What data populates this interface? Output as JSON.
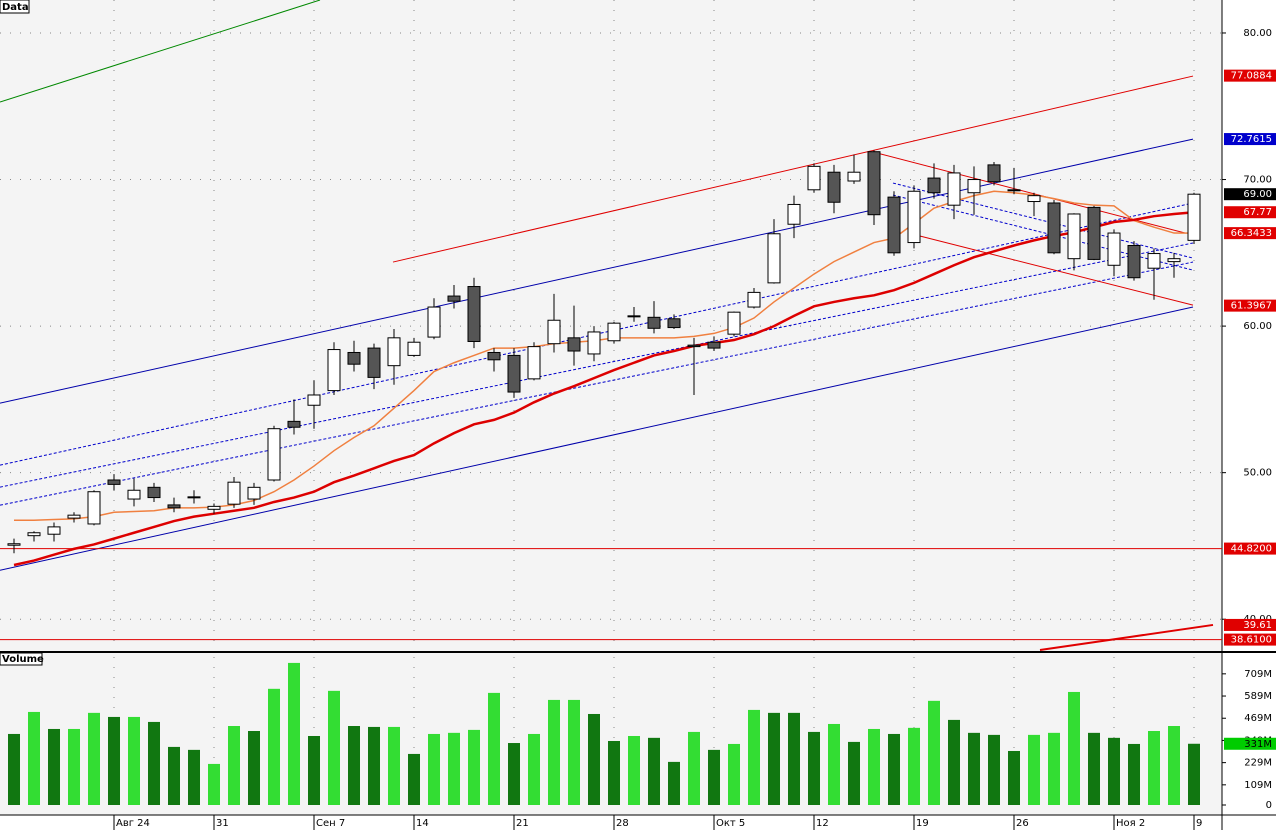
{
  "chart_data": {
    "type": "candlestick",
    "panel_label": "Data",
    "categories": [
      null,
      null,
      null,
      null,
      null,
      "Авг 24",
      null,
      null,
      null,
      null,
      "31",
      null,
      null,
      null,
      null,
      "Сен 7",
      null,
      null,
      null,
      null,
      "14",
      null,
      null,
      null,
      null,
      "21",
      null,
      null,
      null,
      null,
      "28",
      null,
      null,
      null,
      null,
      "Окт 5",
      null,
      null,
      null,
      null,
      "12",
      null,
      null,
      null,
      null,
      "19",
      null,
      null,
      null,
      null,
      "26",
      null,
      null,
      null,
      null,
      "Ноя 2",
      null,
      null,
      null,
      "9"
    ],
    "open": [
      45.05,
      45.7,
      45.8,
      46.9,
      46.5,
      49.5,
      48.2,
      49.0,
      47.8,
      48.3,
      47.5,
      47.85,
      48.2,
      49.5,
      53.5,
      54.6,
      55.6,
      58.2,
      58.5,
      57.3,
      58.0,
      59.25,
      62.05,
      62.7,
      58.2,
      58.0,
      56.4,
      58.8,
      59.2,
      58.1,
      59.0,
      60.7,
      60.6,
      60.5,
      58.7,
      58.9,
      59.45,
      61.3,
      62.95,
      66.95,
      69.3,
      70.5,
      69.9,
      71.9,
      68.8,
      65.7,
      70.1,
      68.25,
      69.1,
      71.0,
      69.3,
      68.5,
      68.4,
      64.6,
      68.1,
      64.15,
      65.5,
      63.95,
      64.4,
      65.85
    ],
    "high": [
      45.5,
      46.0,
      46.6,
      47.3,
      48.8,
      49.9,
      49.6,
      49.3,
      48.3,
      48.8,
      47.9,
      49.7,
      49.3,
      53.2,
      55.0,
      56.3,
      58.9,
      59.0,
      58.8,
      59.8,
      59.2,
      61.9,
      62.8,
      63.3,
      58.5,
      58.5,
      58.9,
      62.2,
      61.4,
      60.0,
      60.3,
      61.3,
      61.7,
      60.8,
      59.2,
      59.3,
      61.0,
      62.6,
      67.3,
      68.9,
      71.1,
      71.0,
      71.7,
      72.0,
      69.2,
      69.6,
      71.1,
      71.0,
      70.9,
      71.2,
      70.8,
      69.1,
      68.6,
      67.7,
      68.2,
      66.6,
      65.8,
      65.3,
      65.0,
      69.1
    ],
    "low": [
      44.5,
      45.3,
      45.3,
      46.6,
      46.4,
      48.8,
      47.7,
      48.0,
      47.3,
      47.9,
      47.2,
      47.6,
      47.8,
      49.4,
      52.6,
      53.0,
      55.3,
      56.9,
      55.7,
      56.0,
      57.9,
      59.1,
      61.2,
      58.5,
      56.9,
      55.1,
      56.3,
      58.2,
      57.3,
      57.6,
      58.8,
      60.3,
      59.5,
      59.8,
      55.3,
      58.3,
      59.3,
      61.2,
      62.9,
      66.0,
      69.1,
      67.7,
      69.7,
      66.9,
      64.8,
      65.3,
      68.7,
      67.3,
      67.6,
      69.6,
      69.0,
      67.5,
      64.9,
      63.8,
      64.5,
      63.4,
      63.1,
      61.8,
      63.3,
      65.6
    ],
    "close": [
      45.15,
      45.9,
      46.3,
      47.1,
      48.7,
      49.2,
      48.8,
      48.3,
      47.6,
      48.35,
      47.7,
      49.35,
      49.0,
      53.0,
      53.1,
      55.3,
      58.4,
      57.4,
      56.5,
      59.2,
      58.9,
      61.3,
      61.7,
      58.95,
      57.7,
      55.5,
      58.6,
      60.4,
      58.3,
      59.6,
      60.2,
      60.65,
      59.85,
      59.9,
      58.6,
      58.5,
      60.95,
      62.3,
      66.3,
      68.3,
      70.9,
      68.45,
      70.5,
      67.6,
      65.0,
      69.2,
      69.1,
      70.45,
      70.0,
      69.85,
      69.25,
      68.9,
      65.0,
      67.65,
      64.55,
      66.35,
      63.3,
      64.95,
      64.6,
      69.0
    ],
    "up_color": "#ffffff",
    "down_color": "#555555",
    "ylim": [
      37.9,
      82.25
    ],
    "yticks": [
      {
        "value": 40,
        "label": "40.00"
      },
      {
        "value": 50,
        "label": "50.00"
      },
      {
        "value": 60,
        "label": "60.00"
      },
      {
        "value": 70,
        "label": "70.00"
      },
      {
        "value": 80,
        "label": "80.00"
      }
    ],
    "grid": true,
    "series": [
      {
        "color": "#f08040",
        "values": [
          46.75,
          46.75,
          46.8,
          46.85,
          47.0,
          47.3,
          47.35,
          47.4,
          47.6,
          47.6,
          47.65,
          47.8,
          48.1,
          48.7,
          49.5,
          50.45,
          51.5,
          52.4,
          53.2,
          54.4,
          55.6,
          56.9,
          57.5,
          58.0,
          58.5,
          58.5,
          58.6,
          58.8,
          58.9,
          59.0,
          59.2,
          59.2,
          59.2,
          59.2,
          59.3,
          59.5,
          59.9,
          60.55,
          61.65,
          62.6,
          63.55,
          64.4,
          65.05,
          65.7,
          66.0,
          67.0,
          68.05,
          68.5,
          68.9,
          69.2,
          69.1,
          68.95,
          68.7,
          68.4,
          68.25,
          68.2,
          67.2,
          66.75,
          66.35,
          66.34
        ]
      },
      {
        "color": "#dd0000",
        "values": [
          43.7,
          44.0,
          44.4,
          44.8,
          45.1,
          45.5,
          45.9,
          46.3,
          46.7,
          47.0,
          47.2,
          47.4,
          47.6,
          48.0,
          48.3,
          48.7,
          49.35,
          49.8,
          50.3,
          50.8,
          51.2,
          52.0,
          52.7,
          53.3,
          53.6,
          54.1,
          54.8,
          55.4,
          55.9,
          56.45,
          57.0,
          57.5,
          58.0,
          58.3,
          58.65,
          58.85,
          59.05,
          59.45,
          60.0,
          60.7,
          61.35,
          61.65,
          61.9,
          62.1,
          62.45,
          62.95,
          63.55,
          64.15,
          64.7,
          65.1,
          65.5,
          65.85,
          66.15,
          66.4,
          66.75,
          67.1,
          67.25,
          67.5,
          67.65,
          67.77
        ]
      }
    ],
    "lines": [
      {
        "color": "#008800",
        "dash": false,
        "x": [
          -0.7,
          15.3
        ],
        "y": [
          75.29,
          82.25
        ]
      },
      {
        "color": "#e00000",
        "dash": false,
        "x": [
          18.95,
          58.95
        ],
        "y": [
          64.37,
          77.06
        ]
      },
      {
        "color": "#0000aa",
        "dash": false,
        "x": [
          -0.7,
          58.95
        ],
        "y": [
          54.74,
          72.76
        ]
      },
      {
        "color": "#0000aa",
        "dash": false,
        "x": [
          -0.7,
          58.95
        ],
        "y": [
          43.34,
          61.3
        ]
      },
      {
        "color": "#0000cc",
        "dash": true,
        "x": [
          -0.7,
          58.95
        ],
        "y": [
          50.51,
          68.4
        ]
      },
      {
        "color": "#0000cc",
        "dash": true,
        "x": [
          -0.7,
          58.95
        ],
        "y": [
          49.01,
          65.67
        ]
      },
      {
        "color": "#0000cc",
        "dash": true,
        "x": [
          -0.7,
          58.95
        ],
        "y": [
          47.78,
          64.37
        ]
      },
      {
        "color": "#0000cc",
        "dash": true,
        "x": [
          43.95,
          58.95
        ],
        "y": [
          69.76,
          64.64
        ]
      },
      {
        "color": "#0000cc",
        "dash": true,
        "x": [
          43.95,
          58.95
        ],
        "y": [
          68.94,
          63.82
        ]
      },
      {
        "color": "#e00000",
        "dash": false,
        "x": [
          42.95,
          58.55
        ],
        "y": [
          71.88,
          66.35
        ]
      },
      {
        "color": "#e00000",
        "dash": false,
        "x": [
          44.7,
          58.95
        ],
        "y": [
          66.35,
          61.43
        ]
      },
      {
        "color": "#e00000",
        "dash": false,
        "x": [
          -0.7,
          60.4
        ],
        "y": [
          44.82,
          44.82
        ]
      },
      {
        "color": "#e00000",
        "dash": false,
        "x": [
          -0.7,
          60.4
        ],
        "y": [
          38.61,
          38.61
        ]
      },
      {
        "color": "#e00000",
        "dash": false,
        "width": 2,
        "x": [
          51.3,
          59.95
        ],
        "y": [
          37.9,
          39.61
        ]
      }
    ],
    "price_labels": [
      {
        "value": 77.0884,
        "label": "77.0884",
        "color": "#e00000"
      },
      {
        "value": 72.7615,
        "label": "72.7615",
        "color": "#0000cc"
      },
      {
        "value": 69,
        "label": "69.00",
        "color": "#000000"
      },
      {
        "value": 67.77,
        "label": "67.77",
        "color": "#e00000"
      },
      {
        "value": 66.3433,
        "label": "66.3433",
        "color": "#e00000"
      },
      {
        "value": 61.3967,
        "label": "61.3967",
        "color": "#e00000"
      },
      {
        "value": 44.82,
        "label": "44.8200",
        "color": "#e00000"
      },
      {
        "value": 39.61,
        "label": "39.61",
        "color": "#e00000"
      },
      {
        "value": 38.61,
        "label": "38.6100",
        "color": "#e00000"
      }
    ],
    "volume": {
      "panel_label": "Volume",
      "values": [
        384,
        503,
        411,
        411,
        498,
        476,
        476,
        449,
        314,
        298,
        222,
        427,
        400,
        628,
        768,
        373,
        617,
        427,
        422,
        422,
        276,
        384,
        390,
        406,
        606,
        335,
        384,
        568,
        568,
        492,
        346,
        373,
        363,
        233,
        395,
        298,
        330,
        514,
        498,
        498,
        395,
        438,
        341,
        411,
        384,
        417,
        563,
        460,
        390,
        379,
        292,
        379,
        390,
        611,
        390,
        363,
        330,
        400,
        427,
        331
      ],
      "colors": [
        "#117711",
        "#33dd33",
        "#117711",
        "#33dd33",
        "#33dd33",
        "#117711",
        "#33dd33",
        "#117711",
        "#117711",
        "#117711",
        "#33dd33",
        "#33dd33",
        "#117711",
        "#33dd33",
        "#33dd33",
        "#117711",
        "#33dd33",
        "#117711",
        "#117711",
        "#33dd33",
        "#117711",
        "#33dd33",
        "#33dd33",
        "#33dd33",
        "#33dd33",
        "#117711",
        "#33dd33",
        "#33dd33",
        "#33dd33",
        "#117711",
        "#117711",
        "#33dd33",
        "#117711",
        "#117711",
        "#33dd33",
        "#117711",
        "#33dd33",
        "#33dd33",
        "#117711",
        "#117711",
        "#117711",
        "#33dd33",
        "#117711",
        "#33dd33",
        "#117711",
        "#33dd33",
        "#33dd33",
        "#117711",
        "#117711",
        "#117711",
        "#117711",
        "#33dd33",
        "#33dd33",
        "#33dd33",
        "#117711",
        "#117711",
        "#117711",
        "#33dd33",
        "#33dd33",
        "#117711"
      ],
      "ylim": [
        0,
        800
      ],
      "yticks": [
        0,
        {
          "value": 109,
          "label": "109M"
        },
        {
          "value": 229,
          "label": "229M"
        },
        {
          "value": 349,
          "label": "349M"
        },
        {
          "value": 469,
          "label": "469M"
        },
        {
          "value": 589,
          "label": "589M"
        },
        {
          "value": 709,
          "label": "709M"
        }
      ],
      "last_label": {
        "value": 331,
        "label": "331M",
        "color": "#00cc00"
      }
    }
  }
}
